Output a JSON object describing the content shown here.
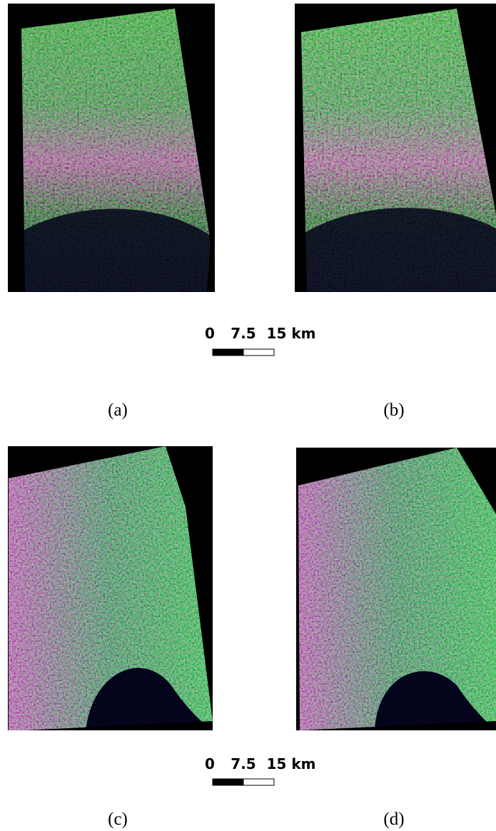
{
  "panels": [
    {
      "label": "(a)"
    },
    {
      "label": "(b)"
    },
    {
      "label": "(c)"
    },
    {
      "label": "(d)"
    }
  ],
  "scale_bars": [
    {
      "labels": [
        "0",
        "7.5",
        "15 km"
      ]
    },
    {
      "labels": [
        "0",
        "7.5",
        "15 km"
      ]
    }
  ]
}
